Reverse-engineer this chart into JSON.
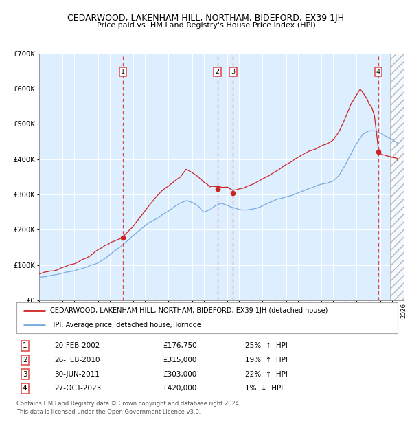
{
  "title": "CEDARWOOD, LAKENHAM HILL, NORTHAM, BIDEFORD, EX39 1JH",
  "subtitle": "Price paid vs. HM Land Registry's House Price Index (HPI)",
  "legend_line1": "CEDARWOOD, LAKENHAM HILL, NORTHAM, BIDEFORD, EX39 1JH (detached house)",
  "legend_line2": "HPI: Average price, detached house, Torridge",
  "footer1": "Contains HM Land Registry data © Crown copyright and database right 2024.",
  "footer2": "This data is licensed under the Open Government Licence v3.0.",
  "transactions": [
    {
      "num": 1,
      "date": "20-FEB-2002",
      "price": 176750,
      "pct": "25%",
      "dir": "↑",
      "rel": "HPI"
    },
    {
      "num": 2,
      "date": "26-FEB-2010",
      "price": 315000,
      "pct": "19%",
      "dir": "↑",
      "rel": "HPI"
    },
    {
      "num": 3,
      "date": "30-JUN-2011",
      "price": 303000,
      "pct": "22%",
      "dir": "↑",
      "rel": "HPI"
    },
    {
      "num": 4,
      "date": "27-OCT-2023",
      "price": 420000,
      "pct": "1%",
      "dir": "↓",
      "rel": "HPI"
    }
  ],
  "transaction_dates_decimal": [
    2002.13,
    2010.15,
    2011.49,
    2023.82
  ],
  "transaction_prices": [
    176750,
    315000,
    303000,
    420000
  ],
  "ylim": [
    0,
    700000
  ],
  "xlim_start": 1995.0,
  "xlim_end": 2026.0,
  "hatch_start": 2024.82,
  "hpi_color": "#7aaadd",
  "sale_color": "#cc2222",
  "vline_color": "#dd4444",
  "plot_bg": "#ddeeff"
}
